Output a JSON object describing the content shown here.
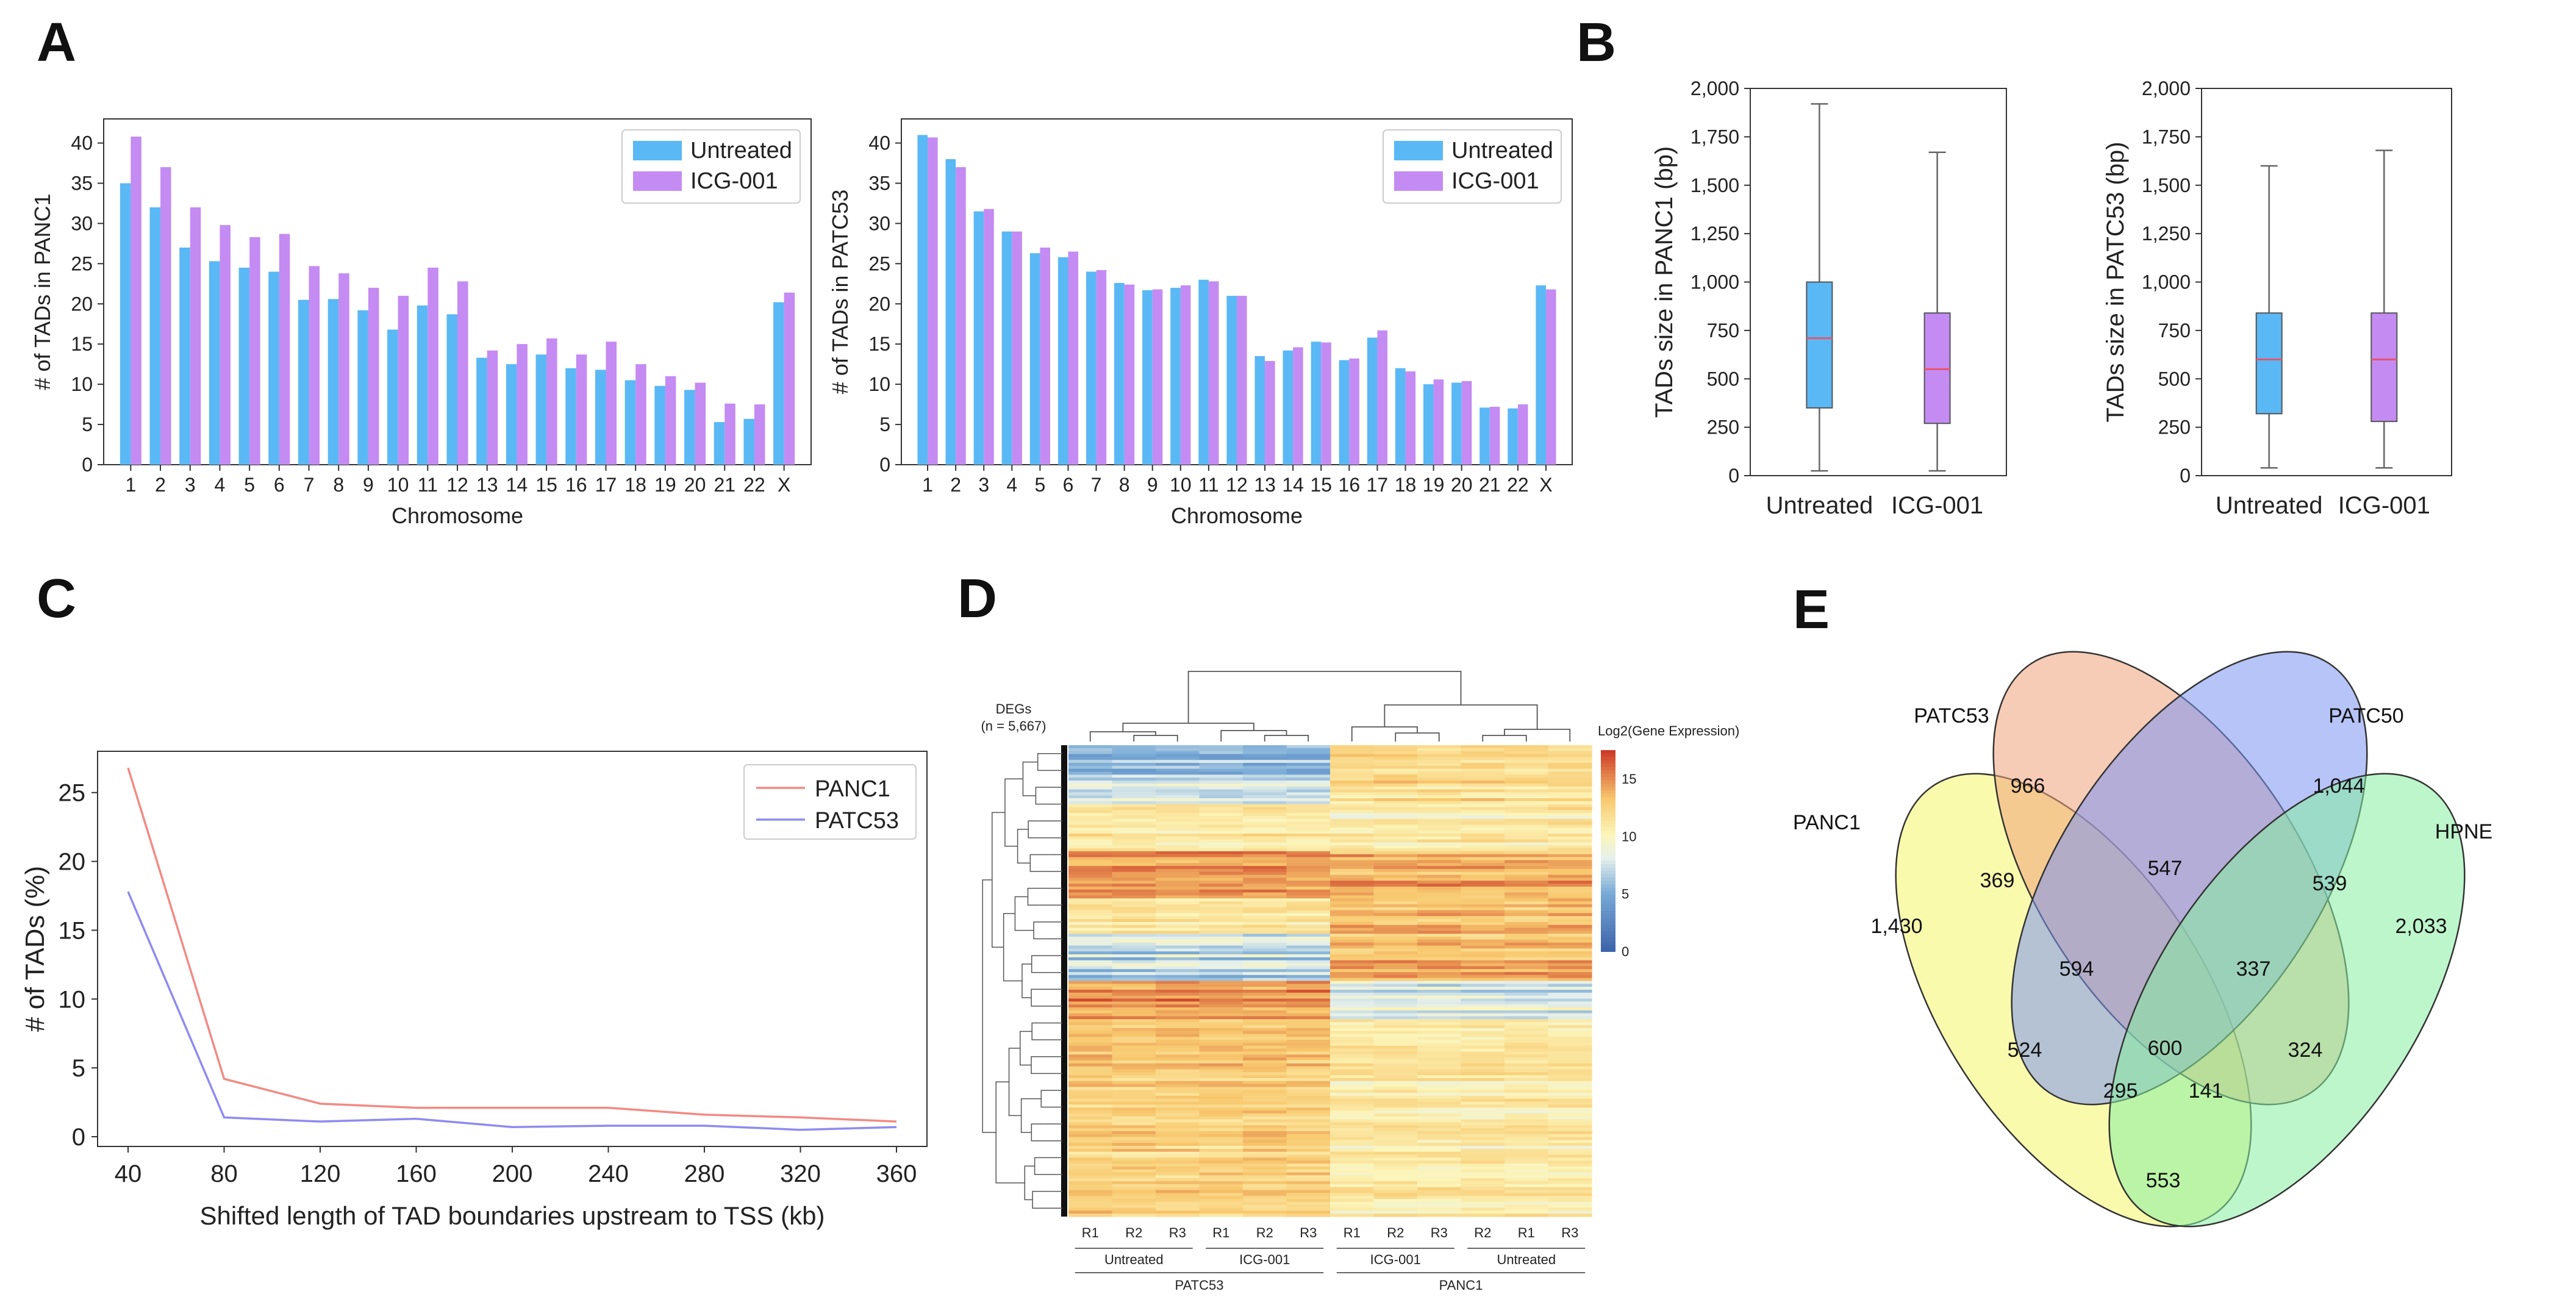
{
  "colors": {
    "untreated": "#5AB8F5",
    "icg": "#C48BF3",
    "panc1_line": "#F28A84",
    "patc53_line": "#8F8BF0",
    "box_untreated": "#5AB8F5",
    "box_icg": "#C48BF3",
    "median": "#E8546C",
    "venn_panc1": "#F5F56A",
    "venn_patc53": "#EFA27A",
    "venn_patc50": "#7B93F2",
    "venn_hpne": "#86EFA0"
  },
  "panels": {
    "a": "A",
    "b": "B",
    "c": "C",
    "d": "D",
    "e": "E"
  },
  "chart_data": [
    {
      "id": "A-left",
      "type": "bar",
      "title": "",
      "xlabel": "Chromosome",
      "ylabel": "# of TADs in PANC1",
      "ylim": [
        0,
        43
      ],
      "yticks": [
        0,
        5,
        10,
        15,
        20,
        25,
        30,
        35,
        40
      ],
      "legend": "top-right",
      "categories": [
        "1",
        "2",
        "3",
        "4",
        "5",
        "6",
        "7",
        "8",
        "9",
        "10",
        "11",
        "12",
        "13",
        "14",
        "15",
        "16",
        "17",
        "18",
        "19",
        "20",
        "21",
        "22",
        "X"
      ],
      "series": [
        {
          "name": "Untreated",
          "values": [
            35,
            32,
            27,
            25.3,
            24.5,
            24,
            20.5,
            20.6,
            19.2,
            16.8,
            19.8,
            18.7,
            13.3,
            12.5,
            13.7,
            12,
            11.8,
            10.5,
            9.8,
            9.3,
            5.3,
            5.7,
            20.2
          ]
        },
        {
          "name": "ICG-001",
          "values": [
            40.8,
            37,
            32,
            29.8,
            28.3,
            28.7,
            24.7,
            23.8,
            22,
            21,
            24.5,
            22.8,
            14.2,
            15,
            15.7,
            13.7,
            15.3,
            12.5,
            11,
            10.2,
            7.6,
            7.5,
            21.4
          ]
        }
      ]
    },
    {
      "id": "A-right",
      "type": "bar",
      "title": "",
      "xlabel": "Chromosome",
      "ylabel": "# of TADs in PATC53",
      "ylim": [
        0,
        43
      ],
      "yticks": [
        0,
        5,
        10,
        15,
        20,
        25,
        30,
        35,
        40
      ],
      "legend": "top-right",
      "categories": [
        "1",
        "2",
        "3",
        "4",
        "5",
        "6",
        "7",
        "8",
        "9",
        "10",
        "11",
        "12",
        "13",
        "14",
        "15",
        "16",
        "17",
        "18",
        "19",
        "20",
        "21",
        "22",
        "X"
      ],
      "series": [
        {
          "name": "Untreated",
          "values": [
            41,
            38,
            31.5,
            29,
            26.3,
            25.8,
            24,
            22.6,
            21.7,
            22,
            23,
            21,
            13.5,
            14.2,
            15.3,
            13,
            15.8,
            12,
            10,
            10.2,
            7.1,
            7,
            22.3
          ]
        },
        {
          "name": "ICG-001",
          "values": [
            40.7,
            37,
            31.8,
            29,
            27,
            26.5,
            24.2,
            22.4,
            21.8,
            22.3,
            22.8,
            21,
            12.9,
            14.6,
            15.2,
            13.2,
            16.7,
            11.6,
            10.6,
            10.4,
            7.2,
            7.5,
            21.8
          ]
        }
      ]
    },
    {
      "id": "B-left",
      "type": "box",
      "ylabel": "TADs size in PANC1 (bp)",
      "ylim": [
        0,
        2000
      ],
      "yticks": [
        0,
        250,
        500,
        750,
        1000,
        1250,
        1500,
        1750,
        2000
      ],
      "ytick_labels": [
        "0",
        "250",
        "500",
        "750",
        "1,000",
        "1,250",
        "1,500",
        "1,750",
        "2,000"
      ],
      "categories": [
        "Untreated",
        "ICG-001"
      ],
      "boxes": [
        {
          "name": "Untreated",
          "whislo": 25,
          "q1": 350,
          "median": 710,
          "q3": 1000,
          "whishi": 1920
        },
        {
          "name": "ICG-001",
          "whislo": 25,
          "q1": 270,
          "median": 550,
          "q3": 840,
          "whishi": 1670
        }
      ]
    },
    {
      "id": "B-right",
      "type": "box",
      "ylabel": "TADs size in PATC53 (bp)",
      "ylim": [
        0,
        2000
      ],
      "yticks": [
        0,
        250,
        500,
        750,
        1000,
        1250,
        1500,
        1750,
        2000
      ],
      "ytick_labels": [
        "0",
        "250",
        "500",
        "750",
        "1,000",
        "1,250",
        "1,500",
        "1,750",
        "2,000"
      ],
      "categories": [
        "Untreated",
        "ICG-001"
      ],
      "boxes": [
        {
          "name": "Untreated",
          "whislo": 40,
          "q1": 320,
          "median": 600,
          "q3": 840,
          "whishi": 1600
        },
        {
          "name": "ICG-001",
          "whislo": 40,
          "q1": 280,
          "median": 600,
          "q3": 840,
          "whishi": 1680
        }
      ]
    },
    {
      "id": "C",
      "type": "line",
      "xlabel": "Shifted length of TAD boundaries upstream to TSS (kb)",
      "ylabel": "# of TADs (%)",
      "ylim": [
        0,
        28
      ],
      "yticks": [
        0,
        5,
        10,
        15,
        20,
        25
      ],
      "legend": "top-right",
      "x": [
        40,
        80,
        120,
        160,
        200,
        240,
        280,
        320,
        360
      ],
      "series": [
        {
          "name": "PANC1",
          "values": [
            26.8,
            4.2,
            2.4,
            2.1,
            2.1,
            2.1,
            1.6,
            1.4,
            1.1
          ]
        },
        {
          "name": "PATC53",
          "values": [
            17.8,
            1.4,
            1.1,
            1.3,
            0.7,
            0.8,
            0.8,
            0.5,
            0.7
          ]
        }
      ]
    },
    {
      "id": "D",
      "type": "heatmap",
      "title_lines": [
        "DEGs",
        "(n = 5,667)"
      ],
      "colorbar_label": "Log2(Gene Expression)",
      "colorbar_ticks": [
        0,
        5,
        10,
        15
      ],
      "columns": [
        "R1",
        "R2",
        "R3",
        "R1",
        "R2",
        "R3",
        "R1",
        "R2",
        "R3",
        "R2",
        "R1",
        "R3"
      ],
      "groups": [
        "Untreated",
        "ICG-001",
        "ICG-001",
        "Untreated"
      ],
      "cell_lines": [
        "PATC53",
        "PANC1"
      ]
    },
    {
      "id": "E",
      "type": "venn",
      "sets": [
        "PATC53",
        "PATC50",
        "PANC1",
        "HPNE"
      ],
      "regions": {
        "patc53_only": "966",
        "patc50_only": "1,044",
        "panc1_only": "1,430",
        "hpne_only": "2,033",
        "panc1_patc53": "369",
        "patc53_patc50": "547",
        "patc50_hpne": "539",
        "panc1_patc53_patc50": "594",
        "patc53_patc50_hpne": "337",
        "panc1_patc50": "524",
        "all_four": "600",
        "patc53_hpne": "324",
        "panc1_patc50_hpne": "295",
        "panc1_patc53_hpne": "141",
        "panc1_hpne": "553"
      }
    }
  ]
}
